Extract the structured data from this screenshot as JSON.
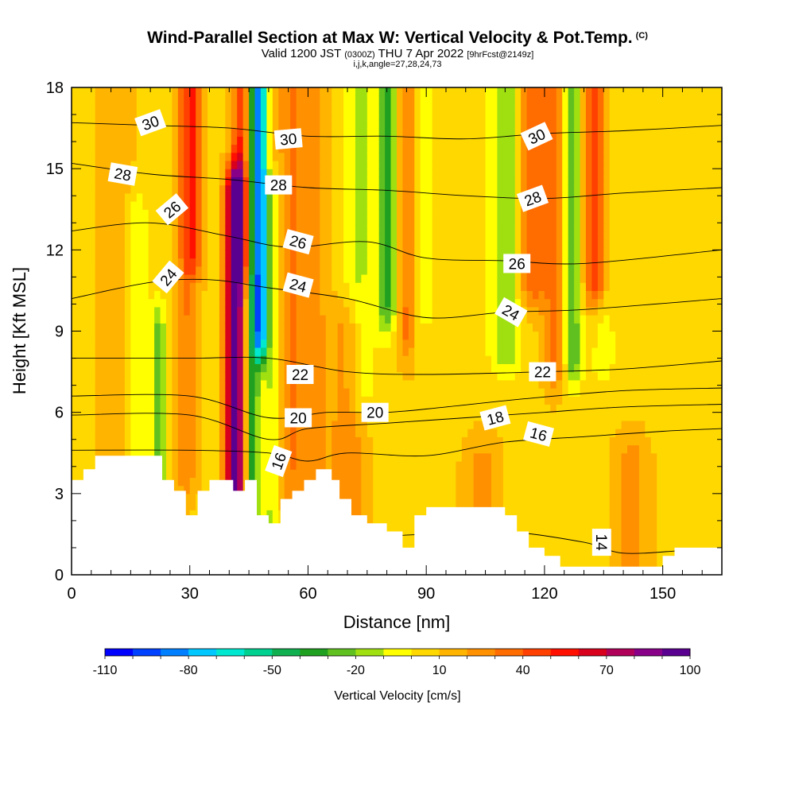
{
  "header": {
    "title": "Wind-Parallel Section at Max W: Vertical Velocity & Pot.Temp.",
    "copyright": "(C)",
    "valid_prefix": "Valid 1200 JST",
    "valid_utc": "(0300Z)",
    "valid_date": "THU 7 Apr 2022",
    "forecast": "[9hrFcst@2149z]",
    "indices": "i,j,k,angle=27,28,24,73"
  },
  "chart_data": {
    "type": "heatmap",
    "xlabel": "Distance [nm]",
    "ylabel": "Height [Kft MSL]",
    "xlim": [
      0,
      165
    ],
    "ylim": [
      0,
      18
    ],
    "x_ticks": [
      "0",
      "30",
      "60",
      "90",
      "120",
      "150"
    ],
    "y_ticks": [
      "0",
      "3",
      "6",
      "9",
      "12",
      "15",
      "18"
    ],
    "colorbar": {
      "label": "Vertical Velocity [cm/s]",
      "range": [
        -110,
        100
      ],
      "tick_labels": [
        "-110",
        "-80",
        "-50",
        "-20",
        "10",
        "40",
        "70",
        "100"
      ],
      "colors": [
        "#0000ff",
        "#0040ff",
        "#0080ff",
        "#00c8ff",
        "#00e8d0",
        "#00d090",
        "#10b050",
        "#20a020",
        "#60c020",
        "#a0e010",
        "#ffff00",
        "#ffd800",
        "#ffb400",
        "#ff9000",
        "#ff6c00",
        "#ff4000",
        "#ff1000",
        "#d8001c",
        "#b0005a",
        "#880088",
        "#5a0090"
      ]
    },
    "theta_contours": [
      {
        "label": "14",
        "value": 14,
        "points": [
          [
            0,
            1.2
          ],
          [
            30,
            1.1
          ],
          [
            60,
            1.3
          ],
          [
            90,
            1.5
          ],
          [
            110,
            1.6
          ],
          [
            130,
            1.2
          ],
          [
            140,
            0.8
          ],
          [
            155,
            0.9
          ],
          [
            165,
            1.0
          ]
        ]
      },
      {
        "label": "16",
        "value": 16,
        "points": [
          [
            0,
            4.6
          ],
          [
            30,
            4.6
          ],
          [
            50,
            4.5
          ],
          [
            60,
            4.2
          ],
          [
            70,
            4.5
          ],
          [
            90,
            4.4
          ],
          [
            110,
            4.9
          ],
          [
            130,
            5.1
          ],
          [
            150,
            5.3
          ],
          [
            165,
            5.4
          ]
        ]
      },
      {
        "label": "18",
        "value": 18,
        "points": [
          [
            0,
            5.9
          ],
          [
            30,
            5.9
          ],
          [
            50,
            5.0
          ],
          [
            60,
            5.4
          ],
          [
            80,
            5.6
          ],
          [
            100,
            5.8
          ],
          [
            120,
            6.0
          ],
          [
            140,
            6.2
          ],
          [
            165,
            6.3
          ]
        ]
      },
      {
        "label": "20",
        "value": 20,
        "points": [
          [
            0,
            6.6
          ],
          [
            30,
            6.6
          ],
          [
            50,
            5.8
          ],
          [
            65,
            6.0
          ],
          [
            80,
            6.0
          ],
          [
            95,
            6.2
          ],
          [
            115,
            6.5
          ],
          [
            140,
            6.8
          ],
          [
            165,
            6.9
          ]
        ]
      },
      {
        "label": "22",
        "value": 22,
        "points": [
          [
            0,
            8.0
          ],
          [
            30,
            8.0
          ],
          [
            50,
            8.0
          ],
          [
            70,
            7.5
          ],
          [
            90,
            7.4
          ],
          [
            120,
            7.5
          ],
          [
            140,
            7.6
          ],
          [
            165,
            7.9
          ]
        ]
      },
      {
        "label": "24",
        "value": 24,
        "points": [
          [
            0,
            10.2
          ],
          [
            20,
            10.8
          ],
          [
            35,
            10.9
          ],
          [
            50,
            10.6
          ],
          [
            70,
            10.2
          ],
          [
            90,
            9.5
          ],
          [
            110,
            9.7
          ],
          [
            130,
            9.8
          ],
          [
            165,
            10.2
          ]
        ]
      },
      {
        "label": "26",
        "value": 26,
        "points": [
          [
            0,
            12.7
          ],
          [
            20,
            13.0
          ],
          [
            40,
            12.5
          ],
          [
            55,
            12.1
          ],
          [
            75,
            12.3
          ],
          [
            90,
            11.7
          ],
          [
            110,
            11.6
          ],
          [
            130,
            11.5
          ],
          [
            165,
            12.0
          ]
        ]
      },
      {
        "label": "28",
        "value": 28,
        "points": [
          [
            0,
            15.2
          ],
          [
            20,
            14.8
          ],
          [
            40,
            14.6
          ],
          [
            60,
            14.3
          ],
          [
            80,
            14.2
          ],
          [
            100,
            14.0
          ],
          [
            120,
            13.9
          ],
          [
            140,
            14.1
          ],
          [
            165,
            14.3
          ]
        ]
      },
      {
        "label": "30",
        "value": 30,
        "points": [
          [
            0,
            16.7
          ],
          [
            20,
            16.6
          ],
          [
            40,
            16.5
          ],
          [
            60,
            16.2
          ],
          [
            80,
            16.2
          ],
          [
            100,
            16.1
          ],
          [
            120,
            16.3
          ],
          [
            140,
            16.4
          ],
          [
            165,
            16.6
          ]
        ]
      }
    ],
    "terrain": [
      [
        0,
        3.5
      ],
      [
        3,
        3.5
      ],
      [
        3,
        3.9
      ],
      [
        6,
        3.9
      ],
      [
        6,
        4.4
      ],
      [
        23,
        4.4
      ],
      [
        23,
        3.5
      ],
      [
        26,
        3.5
      ],
      [
        26,
        3.1
      ],
      [
        29,
        3.1
      ],
      [
        29,
        2.2
      ],
      [
        32,
        2.2
      ],
      [
        32,
        3.1
      ],
      [
        35,
        3.1
      ],
      [
        35,
        3.5
      ],
      [
        41,
        3.5
      ],
      [
        41,
        3.1
      ],
      [
        44,
        3.1
      ],
      [
        44,
        3.5
      ],
      [
        47,
        3.5
      ],
      [
        47,
        2.2
      ],
      [
        50,
        2.2
      ],
      [
        50,
        1.9
      ],
      [
        53,
        1.9
      ],
      [
        53,
        2.8
      ],
      [
        56,
        2.8
      ],
      [
        56,
        3.1
      ],
      [
        59,
        3.1
      ],
      [
        59,
        3.5
      ],
      [
        62,
        3.5
      ],
      [
        62,
        3.9
      ],
      [
        66,
        3.9
      ],
      [
        66,
        3.5
      ],
      [
        68,
        3.5
      ],
      [
        68,
        2.8
      ],
      [
        71,
        2.8
      ],
      [
        71,
        2.2
      ],
      [
        75,
        2.2
      ],
      [
        75,
        1.9
      ],
      [
        80,
        1.9
      ],
      [
        80,
        1.6
      ],
      [
        84,
        1.6
      ],
      [
        84,
        1.0
      ],
      [
        87,
        1.0
      ],
      [
        87,
        2.2
      ],
      [
        90,
        2.2
      ],
      [
        90,
        2.5
      ],
      [
        110,
        2.5
      ],
      [
        110,
        2.2
      ],
      [
        113,
        2.2
      ],
      [
        113,
        1.6
      ],
      [
        116,
        1.6
      ],
      [
        116,
        1.0
      ],
      [
        120,
        1.0
      ],
      [
        120,
        0.7
      ],
      [
        124,
        0.7
      ],
      [
        124,
        0.3
      ],
      [
        150,
        0.3
      ],
      [
        150,
        0.7
      ],
      [
        153,
        0.7
      ],
      [
        153,
        1.0
      ],
      [
        165,
        1.0
      ]
    ],
    "w_features": [
      {
        "x": 11,
        "w": 5.0,
        "v": 6,
        "z0": 3,
        "z1": 20
      },
      {
        "x": 17,
        "w": 2.5,
        "v": -18,
        "z0": 3.8,
        "z1": 13
      },
      {
        "x": 22,
        "w": 1.8,
        "v": -32,
        "z0": 3.8,
        "z1": 9
      },
      {
        "x": 29,
        "w": 2.5,
        "v": 22,
        "z0": 4,
        "z1": 20
      },
      {
        "x": 31,
        "w": 2.5,
        "v": 30,
        "z0": 12,
        "z1": 20
      },
      {
        "x": 41.5,
        "w": 2.3,
        "v": 95,
        "z0": 3,
        "z1": 14
      },
      {
        "x": 43,
        "w": 2.2,
        "v": 40,
        "z0": 12,
        "z1": 20
      },
      {
        "x": 46,
        "w": 1.6,
        "v": -45,
        "z0": 2,
        "z1": 20
      },
      {
        "x": 48,
        "w": 1.6,
        "v": -90,
        "z0": 9,
        "z1": 20
      },
      {
        "x": 51,
        "w": 2.5,
        "v": -22,
        "z0": 2,
        "z1": 14
      },
      {
        "x": 56,
        "w": 4.0,
        "v": 22,
        "z0": 3,
        "z1": 20
      },
      {
        "x": 62,
        "w": 3.0,
        "v": 14,
        "z0": 4,
        "z1": 20
      },
      {
        "x": 70,
        "w": 4.0,
        "v": 22,
        "z0": 1,
        "z1": 9
      },
      {
        "x": 73,
        "w": 4.0,
        "v": -20,
        "z0": 7,
        "z1": 20
      },
      {
        "x": 80,
        "w": 2.5,
        "v": -38,
        "z0": 10,
        "z1": 20
      },
      {
        "x": 85,
        "w": 2.0,
        "v": 24,
        "z0": 9,
        "z1": 20
      },
      {
        "x": 90,
        "w": 3.0,
        "v": -14,
        "z0": 10,
        "z1": 20
      },
      {
        "x": 104,
        "w": 4.0,
        "v": 16,
        "z0": 1,
        "z1": 4
      },
      {
        "x": 110,
        "w": 4.0,
        "v": -28,
        "z0": 8.5,
        "z1": 20
      },
      {
        "x": 117,
        "w": 3.5,
        "v": 32,
        "z0": 11,
        "z1": 20
      },
      {
        "x": 123,
        "w": 3.0,
        "v": 26,
        "z0": 8,
        "z1": 20
      },
      {
        "x": 127,
        "w": 2.5,
        "v": -38,
        "z0": 8,
        "z1": 20
      },
      {
        "x": 133,
        "w": 3.0,
        "v": 48,
        "z0": 11,
        "z1": 20
      },
      {
        "x": 135,
        "w": 3.0,
        "v": -15,
        "z0": 8,
        "z1": 20
      },
      {
        "x": 142,
        "w": 4.0,
        "v": 18,
        "z0": 0,
        "z1": 4
      }
    ],
    "contour_labels": [
      {
        "text": "30",
        "x": 20,
        "y": 16.7,
        "rot": -20
      },
      {
        "text": "28",
        "x": 13,
        "y": 14.8,
        "rot": 10
      },
      {
        "text": "26",
        "x": 25.5,
        "y": 13.5,
        "rot": -40
      },
      {
        "text": "24",
        "x": 24.5,
        "y": 11.0,
        "rot": -50
      },
      {
        "text": "30",
        "x": 55,
        "y": 16.1,
        "rot": -5
      },
      {
        "text": "28",
        "x": 52.5,
        "y": 14.4,
        "rot": 0
      },
      {
        "text": "26",
        "x": 57.5,
        "y": 12.3,
        "rot": 15
      },
      {
        "text": "24",
        "x": 57.5,
        "y": 10.7,
        "rot": 15
      },
      {
        "text": "22",
        "x": 58,
        "y": 7.4,
        "rot": 0
      },
      {
        "text": "20",
        "x": 57.5,
        "y": 5.8,
        "rot": 0
      },
      {
        "text": "20",
        "x": 77,
        "y": 6.0,
        "rot": 0
      },
      {
        "text": "16",
        "x": 52.5,
        "y": 4.2,
        "rot": -70
      },
      {
        "text": "30",
        "x": 118,
        "y": 16.2,
        "rot": -25
      },
      {
        "text": "28",
        "x": 117,
        "y": 13.9,
        "rot": -20
      },
      {
        "text": "26",
        "x": 113,
        "y": 11.5,
        "rot": 0
      },
      {
        "text": "24",
        "x": 111.5,
        "y": 9.7,
        "rot": 30
      },
      {
        "text": "22",
        "x": 119.5,
        "y": 7.5,
        "rot": 0
      },
      {
        "text": "18",
        "x": 107.5,
        "y": 5.8,
        "rot": -15
      },
      {
        "text": "16",
        "x": 118.5,
        "y": 5.2,
        "rot": 15
      },
      {
        "text": "14",
        "x": 134.5,
        "y": 1.2,
        "rot": 90
      }
    ]
  }
}
